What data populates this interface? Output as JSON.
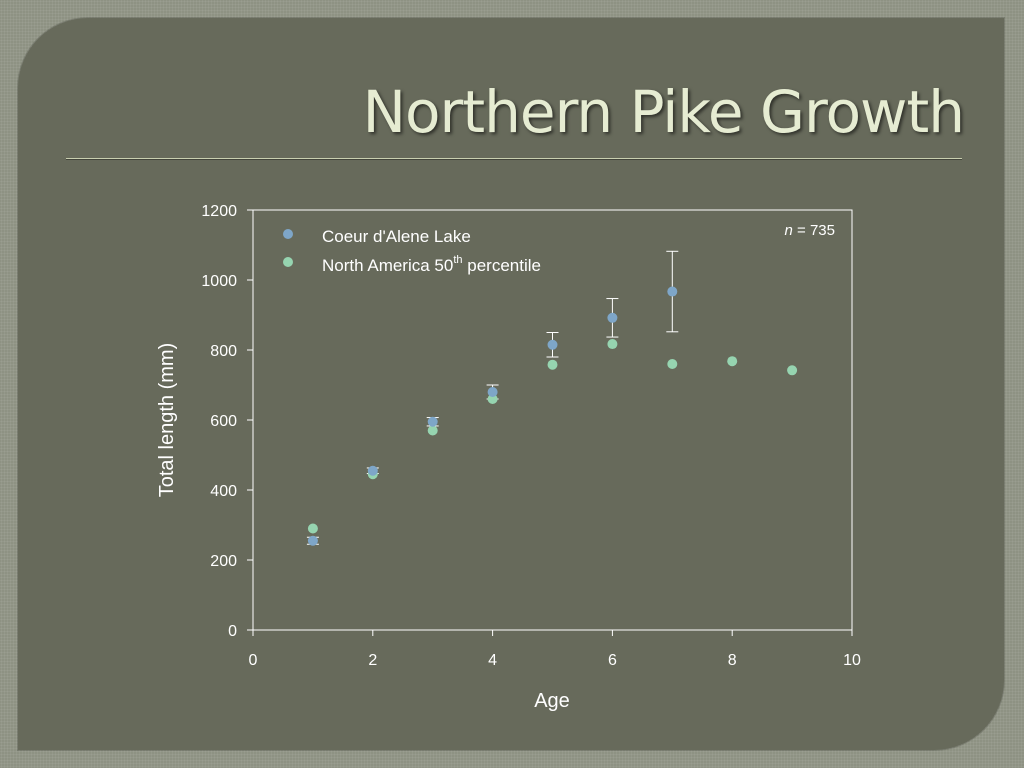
{
  "slide": {
    "title": "Northern Pike Growth"
  },
  "chart_data": {
    "type": "scatter",
    "xlabel": "Age",
    "ylabel": "Total length (mm)",
    "xlim": [
      0,
      10
    ],
    "ylim": [
      0,
      1200
    ],
    "xticks": [
      0,
      2,
      4,
      6,
      8,
      10
    ],
    "yticks": [
      0,
      200,
      400,
      600,
      800,
      1000,
      1200
    ],
    "grid": false,
    "legend_position": "top-left",
    "annotation": {
      "italic": "n",
      "text": " = 735"
    },
    "series": [
      {
        "name": "Coeur d'Alene Lake",
        "color": "#7ea6c8",
        "points": [
          {
            "x": 1,
            "y": 255,
            "err": 10
          },
          {
            "x": 2,
            "y": 455,
            "err": 8
          },
          {
            "x": 3,
            "y": 595,
            "err": 12
          },
          {
            "x": 4,
            "y": 680,
            "err": 20
          },
          {
            "x": 5,
            "y": 815,
            "err": 35
          },
          {
            "x": 6,
            "y": 892,
            "err": 55
          },
          {
            "x": 7,
            "y": 967,
            "err": 115
          }
        ]
      },
      {
        "name": "North America 50",
        "name_sup": "th",
        "name_suffix": " percentile",
        "color": "#96d4b0",
        "points": [
          {
            "x": 1,
            "y": 290
          },
          {
            "x": 2,
            "y": 445
          },
          {
            "x": 3,
            "y": 570
          },
          {
            "x": 4,
            "y": 660
          },
          {
            "x": 5,
            "y": 758
          },
          {
            "x": 6,
            "y": 817
          },
          {
            "x": 7,
            "y": 760
          },
          {
            "x": 8,
            "y": 768
          },
          {
            "x": 9,
            "y": 742
          }
        ]
      }
    ]
  }
}
